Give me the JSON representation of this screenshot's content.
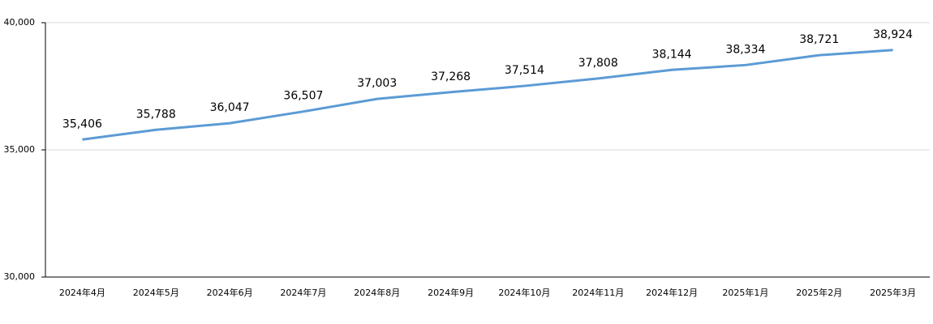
{
  "chart_data": {
    "type": "line",
    "categories": [
      "2024年4月",
      "2024年5月",
      "2024年6月",
      "2024年7月",
      "2024年8月",
      "2024年9月",
      "2024年10月",
      "2024年11月",
      "2024年12月",
      "2025年1月",
      "2025年2月",
      "2025年3月"
    ],
    "values": [
      35406,
      35788,
      36047,
      36507,
      37003,
      37268,
      37514,
      37808,
      38144,
      38334,
      38721,
      38924
    ],
    "value_labels": [
      "35,406",
      "35,788",
      "36,047",
      "36,507",
      "37,003",
      "37,268",
      "37,514",
      "37,808",
      "38,144",
      "38,334",
      "38,721",
      "38,924"
    ],
    "color": "#5b9bd5",
    "ylim": [
      30000,
      40000
    ],
    "yticks": [
      {
        "value": 30000,
        "label": "30,000"
      },
      {
        "value": 35000,
        "label": "35,000"
      },
      {
        "value": 40000,
        "label": "40,000"
      }
    ],
    "grid": true
  }
}
